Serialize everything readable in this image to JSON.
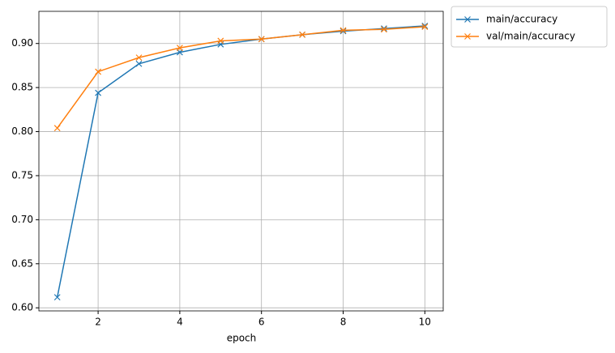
{
  "chart_data": {
    "type": "line",
    "x_label": "epoch",
    "x": [
      1,
      2,
      3,
      4,
      5,
      6,
      7,
      8,
      9,
      10
    ],
    "series": [
      {
        "name": "main/accuracy",
        "color": "#1f77b4",
        "values": [
          0.612,
          0.844,
          0.877,
          0.89,
          0.899,
          0.905,
          0.91,
          0.914,
          0.917,
          0.92
        ]
      },
      {
        "name": "val/main/accuracy",
        "color": "#ff7f0e",
        "values": [
          0.804,
          0.868,
          0.884,
          0.895,
          0.903,
          0.905,
          0.91,
          0.915,
          0.916,
          0.919
        ]
      }
    ],
    "xlim": [
      0.55,
      10.45
    ],
    "xticks": [
      2,
      4,
      6,
      8,
      10
    ],
    "ylim": [
      0.5965,
      0.9365
    ],
    "yticks": [
      {
        "value": 0.6,
        "label": "0.60"
      },
      {
        "value": 0.65,
        "label": "0.65"
      },
      {
        "value": 0.7,
        "label": "0.70"
      },
      {
        "value": 0.75,
        "label": "0.75"
      },
      {
        "value": 0.8,
        "label": "0.80"
      },
      {
        "value": 0.85,
        "label": "0.85"
      },
      {
        "value": 0.9,
        "label": "0.90"
      }
    ],
    "grid": true,
    "marker": "x",
    "legend": "outside upper right"
  }
}
